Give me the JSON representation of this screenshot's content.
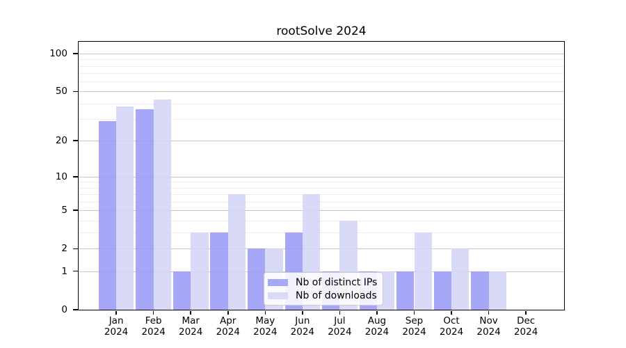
{
  "chart_data": {
    "type": "bar",
    "title": "rootSolve 2024",
    "categories": [
      {
        "month": "Jan",
        "year": "2024"
      },
      {
        "month": "Feb",
        "year": "2024"
      },
      {
        "month": "Mar",
        "year": "2024"
      },
      {
        "month": "Apr",
        "year": "2024"
      },
      {
        "month": "May",
        "year": "2024"
      },
      {
        "month": "Jun",
        "year": "2024"
      },
      {
        "month": "Jul",
        "year": "2024"
      },
      {
        "month": "Aug",
        "year": "2024"
      },
      {
        "month": "Sep",
        "year": "2024"
      },
      {
        "month": "Oct",
        "year": "2024"
      },
      {
        "month": "Nov",
        "year": "2024"
      },
      {
        "month": "Dec",
        "year": "2024"
      }
    ],
    "series": [
      {
        "name": "Nb of distinct IPs",
        "color": "#a7a7f8",
        "bar_fill": "rgba(152,152,247,0.85)",
        "values": [
          29,
          36,
          1,
          3,
          2,
          3,
          1,
          1,
          1,
          1,
          1,
          0
        ]
      },
      {
        "name": "Nb of downloads",
        "color": "#d9d9f8",
        "bar_fill": "rgba(210,210,247,0.85)",
        "values": [
          38,
          43,
          3,
          7,
          2,
          7,
          4,
          1,
          3,
          2,
          1,
          0
        ]
      }
    ],
    "y_scale": "log1p",
    "ylim": [
      0,
      124
    ],
    "y_ticks": [
      0,
      1,
      2,
      5,
      10,
      20,
      50,
      100
    ],
    "y_minor_ticks": [
      3,
      4,
      6,
      7,
      8,
      9,
      30,
      40,
      60,
      70,
      80,
      90
    ],
    "xlabel": "",
    "ylabel": "",
    "grid": true,
    "legend_position": "lower center"
  },
  "colors": {
    "background": "#ffffff",
    "axis": "#000000",
    "text": "#000000",
    "major_grid": "#c6c6c6",
    "minor_grid": "#ededed"
  }
}
